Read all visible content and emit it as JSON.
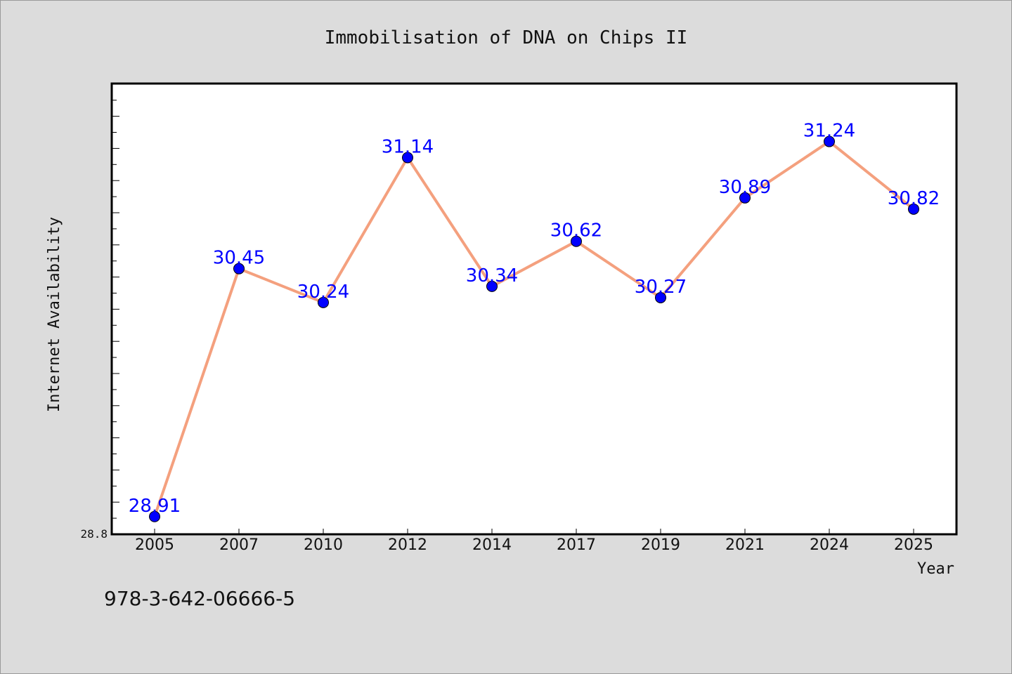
{
  "chart_data": {
    "type": "line",
    "title": "Immobilisation of DNA on Chips II",
    "xlabel": "Year",
    "ylabel": "Internet Availability",
    "categories": [
      "2005",
      "2007",
      "2010",
      "2012",
      "2014",
      "2017",
      "2019",
      "2021",
      "2024",
      "2025"
    ],
    "series": [
      {
        "values": [
          28.91,
          30.45,
          30.24,
          31.14,
          30.34,
          30.62,
          30.27,
          30.89,
          31.24,
          30.82
        ],
        "labels": [
          "28.91",
          "30.45",
          "30.24",
          "31.14",
          "30.34",
          "30.62",
          "30.27",
          "30.89",
          "31.24",
          "30.82"
        ]
      }
    ],
    "ylim": [
      28.8,
      31.6
    ],
    "y_min_label": "28.8",
    "grid": false,
    "line_color": "#f4a07e",
    "marker_color": "#0000ff",
    "label_color": "#0000ff"
  },
  "footer": {
    "isbn": "978-3-642-06666-5"
  }
}
